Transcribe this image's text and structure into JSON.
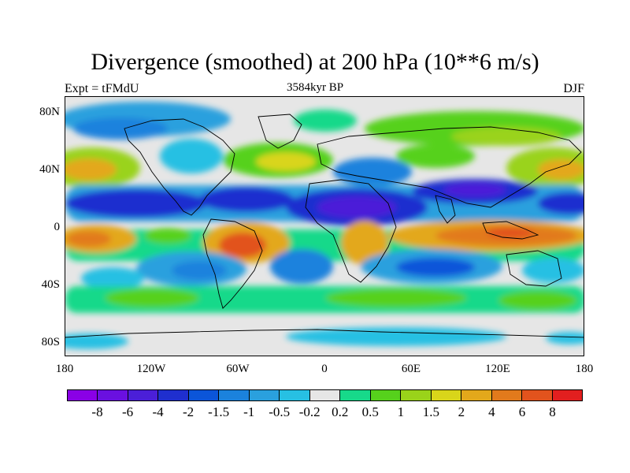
{
  "title": "Divergence (smoothed) at 200 hPa (10**6 m/s)",
  "subtitle_left": "Expt = tFMdU",
  "subtitle_center": "3584kyr BP",
  "subtitle_right": "DJF",
  "map": {
    "y_axis_labels": [
      "80N",
      "40N",
      "0",
      "40S",
      "80S"
    ],
    "x_axis_labels": [
      "180",
      "120W",
      "60W",
      "0",
      "60E",
      "120E",
      "180"
    ]
  },
  "colorbar": {
    "colors": [
      "#8a00e6",
      "#6a10e0",
      "#4b1fd8",
      "#1f2fcf",
      "#0b55d9",
      "#1b82dd",
      "#2aa0de",
      "#27c0e3",
      "#e6e6e6",
      "#17d98a",
      "#56d11c",
      "#9ad31a",
      "#d9d51a",
      "#e3a81b",
      "#e27a1c",
      "#e2531d",
      "#e21f1f"
    ],
    "labels": [
      "-8",
      "-6",
      "-4",
      "-2",
      "-1.5",
      "-1",
      "-0.5",
      "-0.2",
      "0.2",
      "0.5",
      "1",
      "1.5",
      "2",
      "4",
      "6",
      "8"
    ]
  },
  "colors": {
    "land_outline": "#000000",
    "background": "#ffffff"
  }
}
